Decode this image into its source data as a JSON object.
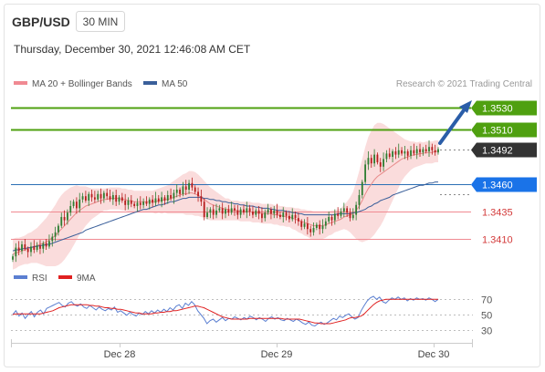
{
  "header": {
    "symbol": "GBP/USD",
    "timeframe": "30 MIN",
    "datetime": "Thursday, December 30, 2021 12:46:08 AM CET"
  },
  "legend": {
    "ma20": "MA 20 + Bollinger Bands",
    "ma50": "MA 50",
    "credit": "Research © 2021 Trading Central",
    "rsi": "RSI",
    "ma9": "9MA"
  },
  "colors": {
    "resistance": "#4fa010",
    "support": "#f08a92",
    "pivot": "#2a6fb5",
    "pivot_label": "#1a73e8",
    "current_label": "#333333",
    "candle_up": "#2e7d32",
    "candle_down": "#b71c1c",
    "bollinger": "#f9d6d6",
    "ma20_line": "#e88a8a",
    "ma50_line": "#3a5f9a",
    "arrow": "#2a5da8",
    "rsi_line": "#5b7fd1",
    "ma9_line": "#e02020"
  },
  "chart_data": [
    {
      "type": "candlestick",
      "title": "GBP/USD",
      "x_ticks": [
        "Dec 28",
        "Dec 29",
        "Dec 30"
      ],
      "ylim": [
        1.3385,
        1.3545
      ],
      "levels": [
        {
          "value": 1.353,
          "label": "1.3530",
          "kind": "resistance"
        },
        {
          "value": 1.351,
          "label": "1.3510",
          "kind": "resistance"
        },
        {
          "value": 1.3492,
          "label": "1.3492",
          "kind": "current"
        },
        {
          "value": 1.346,
          "label": "1.3460",
          "kind": "pivot"
        },
        {
          "value": 1.3435,
          "label": "1.3435",
          "kind": "support"
        },
        {
          "value": 1.341,
          "label": "1.3410",
          "kind": "support"
        }
      ],
      "closes": [
        1.3394,
        1.3402,
        1.3399,
        1.3405,
        1.3401,
        1.3398,
        1.3403,
        1.34,
        1.3404,
        1.3401,
        1.3406,
        1.3403,
        1.3408,
        1.3412,
        1.3416,
        1.3422,
        1.343,
        1.3427,
        1.3434,
        1.344,
        1.3444,
        1.3438,
        1.3446,
        1.3449,
        1.3445,
        1.3451,
        1.3448,
        1.3446,
        1.3451,
        1.3447,
        1.3452,
        1.3449,
        1.3446,
        1.345,
        1.3444,
        1.3448,
        1.3445,
        1.3441,
        1.3445,
        1.3442,
        1.344,
        1.3443,
        1.3441,
        1.3444,
        1.3442,
        1.3446,
        1.3443,
        1.3447,
        1.3444,
        1.3448,
        1.3445,
        1.345,
        1.3447,
        1.3452,
        1.3455,
        1.3451,
        1.3458,
        1.3455,
        1.3461,
        1.3457,
        1.3453,
        1.3449,
        1.3444,
        1.343,
        1.3434,
        1.3437,
        1.3432,
        1.3436,
        1.3438,
        1.3433,
        1.3437,
        1.3434,
        1.3438,
        1.3436,
        1.3432,
        1.3437,
        1.3434,
        1.3438,
        1.3435,
        1.3432,
        1.3436,
        1.3433,
        1.3429,
        1.3434,
        1.3437,
        1.3433,
        1.3436,
        1.3432,
        1.343,
        1.3434,
        1.3431,
        1.3428,
        1.3432,
        1.3429,
        1.3426,
        1.3421,
        1.3424,
        1.3419,
        1.3416,
        1.342,
        1.3423,
        1.3419,
        1.3422,
        1.3426,
        1.343,
        1.3427,
        1.3433,
        1.3431,
        1.3435,
        1.3438,
        1.3434,
        1.3429,
        1.3432,
        1.3441,
        1.345,
        1.3462,
        1.3478,
        1.3484,
        1.3479,
        1.3487,
        1.348,
        1.3476,
        1.3483,
        1.3488,
        1.3485,
        1.349,
        1.3487,
        1.3491,
        1.3488,
        1.349,
        1.3486,
        1.3491,
        1.3488,
        1.3492,
        1.3489,
        1.3492,
        1.349,
        1.3494,
        1.3491,
        1.3489,
        1.3492
      ],
      "ma20": [
        1.3396,
        1.3397,
        1.3398,
        1.3399,
        1.34,
        1.3401,
        1.3402,
        1.3403,
        1.3404,
        1.3405,
        1.3406,
        1.3407,
        1.3409,
        1.3411,
        1.3413,
        1.3416,
        1.3419,
        1.3422,
        1.3425,
        1.3428,
        1.3431,
        1.3434,
        1.3436,
        1.3438,
        1.344,
        1.3441,
        1.3442,
        1.3443,
        1.3444,
        1.3445,
        1.3446,
        1.3446,
        1.3447,
        1.3447,
        1.3447,
        1.3447,
        1.3446,
        1.3446,
        1.3445,
        1.3445,
        1.3444,
        1.3444,
        1.3444,
        1.3444,
        1.3444,
        1.3444,
        1.3444,
        1.3444,
        1.3445,
        1.3445,
        1.3446,
        1.3446,
        1.3447,
        1.3448,
        1.3449,
        1.345,
        1.3451,
        1.3451,
        1.3452,
        1.3452,
        1.3451,
        1.345,
        1.3448,
        1.3446,
        1.3444,
        1.3442,
        1.3441,
        1.344,
        1.3439,
        1.3438,
        1.3437,
        1.3437,
        1.3436,
        1.3436,
        1.3436,
        1.3435,
        1.3435,
        1.3435,
        1.3435,
        1.3434,
        1.3434,
        1.3434,
        1.3433,
        1.3433,
        1.3433,
        1.3433,
        1.3432,
        1.3432,
        1.3431,
        1.3431,
        1.343,
        1.343,
        1.3429,
        1.3428,
        1.3427,
        1.3426,
        1.3425,
        1.3424,
        1.3423,
        1.3422,
        1.3422,
        1.3422,
        1.3422,
        1.3423,
        1.3424,
        1.3425,
        1.3426,
        1.3427,
        1.3428,
        1.343,
        1.3431,
        1.3432,
        1.3433,
        1.3436,
        1.344,
        1.3445,
        1.3451,
        1.3456,
        1.346,
        1.3464,
        1.3467,
        1.3469,
        1.3471,
        1.3473,
        1.3475,
        1.3477,
        1.3479,
        1.3481,
        1.3483,
        1.3484,
        1.3485,
        1.3486,
        1.3487,
        1.3487,
        1.3488,
        1.3488,
        1.3489,
        1.3489,
        1.3489,
        1.349,
        1.349
      ],
      "ma50": [
        1.3399,
        1.34,
        1.34,
        1.3401,
        1.3401,
        1.3402,
        1.3402,
        1.3403,
        1.3403,
        1.3404,
        1.3404,
        1.3405,
        1.3405,
        1.3406,
        1.3407,
        1.3408,
        1.3409,
        1.341,
        1.3411,
        1.3412,
        1.3413,
        1.3414,
        1.3415,
        1.3416,
        1.3418,
        1.3419,
        1.342,
        1.3421,
        1.3422,
        1.3423,
        1.3424,
        1.3425,
        1.3426,
        1.3427,
        1.3428,
        1.3429,
        1.343,
        1.3431,
        1.3432,
        1.3433,
        1.3434,
        1.3435,
        1.3436,
        1.3437,
        1.3437,
        1.3438,
        1.3439,
        1.344,
        1.3441,
        1.3441,
        1.3442,
        1.3443,
        1.3444,
        1.3444,
        1.3445,
        1.3446,
        1.3447,
        1.3447,
        1.3448,
        1.3448,
        1.3448,
        1.3448,
        1.3448,
        1.3447,
        1.3447,
        1.3446,
        1.3446,
        1.3445,
        1.3445,
        1.3444,
        1.3444,
        1.3443,
        1.3443,
        1.3442,
        1.3442,
        1.3441,
        1.3441,
        1.344,
        1.344,
        1.344,
        1.3439,
        1.3439,
        1.3438,
        1.3438,
        1.3438,
        1.3437,
        1.3437,
        1.3436,
        1.3436,
        1.3436,
        1.3435,
        1.3435,
        1.3434,
        1.3434,
        1.3433,
        1.3433,
        1.3432,
        1.3432,
        1.3432,
        1.3432,
        1.3432,
        1.3432,
        1.3432,
        1.3432,
        1.3432,
        1.3432,
        1.3432,
        1.3433,
        1.3433,
        1.3433,
        1.3433,
        1.3433,
        1.3434,
        1.3434,
        1.3435,
        1.3436,
        1.3437,
        1.3439,
        1.344,
        1.3442,
        1.3443,
        1.3445,
        1.3446,
        1.3447,
        1.3448,
        1.345,
        1.3451,
        1.3452,
        1.3453,
        1.3454,
        1.3455,
        1.3456,
        1.3457,
        1.3458,
        1.3459,
        1.3459,
        1.346,
        1.3461,
        1.3461,
        1.3462,
        1.3462
      ],
      "bb_width": [
        0.0014,
        0.0014,
        0.0013,
        0.0013,
        0.0013,
        0.0014,
        0.0014,
        0.0015,
        0.0016,
        0.0018,
        0.002,
        0.0022,
        0.0024,
        0.0026,
        0.0028,
        0.003,
        0.0031,
        0.0031,
        0.003,
        0.0029,
        0.0027,
        0.0025,
        0.0022,
        0.002,
        0.0018,
        0.0016,
        0.0014,
        0.0013,
        0.0012,
        0.0011,
        0.001,
        0.001,
        0.001,
        0.001,
        0.001,
        0.001,
        0.001,
        0.001,
        0.001,
        0.001,
        0.001,
        0.001,
        0.001,
        0.001,
        0.001,
        0.001,
        0.001,
        0.0011,
        0.0011,
        0.0012,
        0.0012,
        0.0013,
        0.0014,
        0.0015,
        0.0016,
        0.0017,
        0.0018,
        0.0019,
        0.002,
        0.002,
        0.002,
        0.0019,
        0.0018,
        0.0017,
        0.0016,
        0.0015,
        0.0014,
        0.0013,
        0.0012,
        0.0011,
        0.001,
        0.001,
        0.0009,
        0.0009,
        0.0009,
        0.0009,
        0.0009,
        0.0009,
        0.0009,
        0.0009,
        0.0009,
        0.0009,
        0.0009,
        0.0009,
        0.0009,
        0.0009,
        0.0009,
        0.0009,
        0.0009,
        0.0009,
        0.0009,
        0.0009,
        0.001,
        0.001,
        0.0011,
        0.0011,
        0.0012,
        0.0012,
        0.0013,
        0.0013,
        0.0013,
        0.0013,
        0.0012,
        0.0012,
        0.0011,
        0.0011,
        0.001,
        0.001,
        0.001,
        0.0011,
        0.0013,
        0.0016,
        0.002,
        0.0026,
        0.0032,
        0.0038,
        0.0043,
        0.0047,
        0.0049,
        0.005,
        0.0049,
        0.0047,
        0.0044,
        0.004,
        0.0036,
        0.0032,
        0.0028,
        0.0024,
        0.002,
        0.0017,
        0.0015,
        0.0013,
        0.0012,
        0.0011,
        0.0011,
        0.001,
        0.001,
        0.001,
        0.001,
        0.001,
        0.001
      ]
    },
    {
      "type": "line",
      "title": "RSI",
      "ylim": [
        20,
        80
      ],
      "y_ticks": [
        70,
        50,
        30
      ],
      "series": [
        {
          "name": "RSI",
          "values": [
            50,
            55,
            48,
            52,
            45,
            50,
            54,
            47,
            53,
            56,
            51,
            58,
            60,
            62,
            64,
            66,
            62,
            60,
            65,
            67,
            63,
            61,
            64,
            60,
            58,
            62,
            59,
            56,
            60,
            57,
            55,
            58,
            56,
            60,
            53,
            55,
            52,
            49,
            53,
            50,
            48,
            52,
            50,
            54,
            51,
            55,
            52,
            56,
            53,
            57,
            54,
            59,
            56,
            61,
            63,
            58,
            65,
            62,
            67,
            63,
            55,
            50,
            45,
            38,
            42,
            44,
            40,
            43,
            46,
            42,
            45,
            44,
            47,
            45,
            43,
            46,
            44,
            48,
            46,
            43,
            46,
            44,
            41,
            45,
            47,
            44,
            46,
            43,
            42,
            45,
            43,
            41,
            44,
            42,
            39,
            37,
            40,
            36,
            35,
            38,
            40,
            37,
            39,
            42,
            45,
            43,
            48,
            46,
            49,
            51,
            47,
            44,
            46,
            55,
            62,
            68,
            72,
            74,
            70,
            73,
            67,
            65,
            69,
            72,
            70,
            73,
            70,
            72,
            68,
            71,
            69,
            72,
            70,
            71,
            69,
            72,
            70,
            67,
            70
          ]
        },
        {
          "name": "9MA",
          "values": [
            50,
            51,
            51,
            51,
            51,
            51,
            51,
            51,
            51,
            51,
            52,
            53,
            54,
            55,
            57,
            59,
            60,
            61,
            62,
            63,
            63,
            63,
            63,
            63,
            63,
            62,
            62,
            61,
            61,
            60,
            59,
            59,
            58,
            58,
            57,
            57,
            56,
            55,
            54,
            53,
            52,
            52,
            51,
            51,
            51,
            51,
            52,
            52,
            53,
            53,
            54,
            54,
            55,
            55,
            56,
            57,
            58,
            59,
            60,
            61,
            61,
            60,
            59,
            57,
            55,
            53,
            51,
            49,
            47,
            46,
            45,
            44,
            44,
            44,
            44,
            44,
            44,
            45,
            45,
            45,
            45,
            45,
            45,
            45,
            45,
            45,
            45,
            45,
            44,
            44,
            44,
            44,
            44,
            44,
            43,
            42,
            41,
            40,
            39,
            39,
            38,
            38,
            38,
            38,
            39,
            40,
            41,
            42,
            43,
            45,
            46,
            46,
            47,
            48,
            51,
            55,
            59,
            63,
            66,
            68,
            69,
            70,
            70,
            70,
            70,
            70,
            70,
            70,
            70,
            70,
            70,
            70,
            70,
            70,
            70,
            70,
            70,
            70,
            70
          ]
        }
      ]
    }
  ]
}
